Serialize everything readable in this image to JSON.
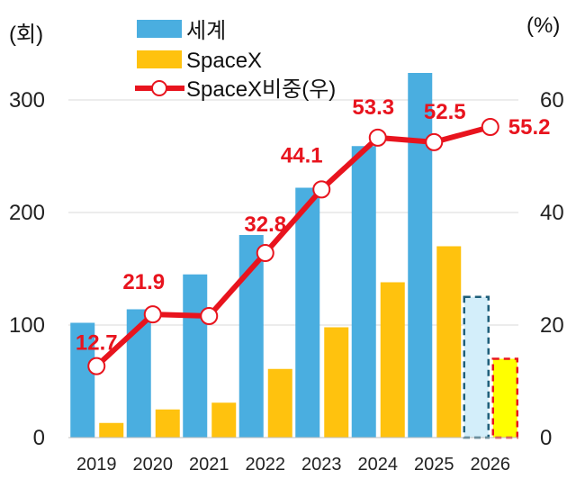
{
  "chart_data": {
    "type": "bar",
    "categories": [
      "2019",
      "2020",
      "2021",
      "2022",
      "2023",
      "2024",
      "2025",
      "2026"
    ],
    "left_axis_unit": "(회)",
    "right_axis_unit": "(%)",
    "left_ticks": [
      "0",
      "100",
      "200",
      "300"
    ],
    "right_ticks": [
      "0",
      "20",
      "40",
      "60"
    ],
    "ylim_left": [
      0,
      350
    ],
    "ylim_right": [
      0,
      70
    ],
    "grid": true,
    "legend_placement": "top",
    "series": [
      {
        "name": "세계",
        "kind": "bar",
        "color": "#4aaee0",
        "values": [
          102,
          114,
          145,
          180,
          222,
          259,
          324,
          125
        ]
      },
      {
        "name": "SpaceX",
        "kind": "bar",
        "color": "#ffc20e",
        "values": [
          13,
          25,
          31,
          61,
          98,
          138,
          170,
          70
        ]
      },
      {
        "name": "SpaceX비중(우)",
        "kind": "line",
        "axis": "right",
        "color": "#e8141e",
        "values": [
          12.7,
          21.9,
          21.6,
          32.8,
          44.1,
          53.3,
          52.5,
          55.2
        ]
      }
    ],
    "data_labels": [
      "12.7",
      "21.9",
      "",
      "32.8",
      "44.1",
      "53.3",
      "52.5",
      "55.2"
    ],
    "projected_category": "2026",
    "projected_colors": {
      "world_fill": "#d3eefa",
      "world_border": "#1f5f7a",
      "spacex_fill": "#ffff00",
      "spacex_border": "#e8141e"
    }
  }
}
